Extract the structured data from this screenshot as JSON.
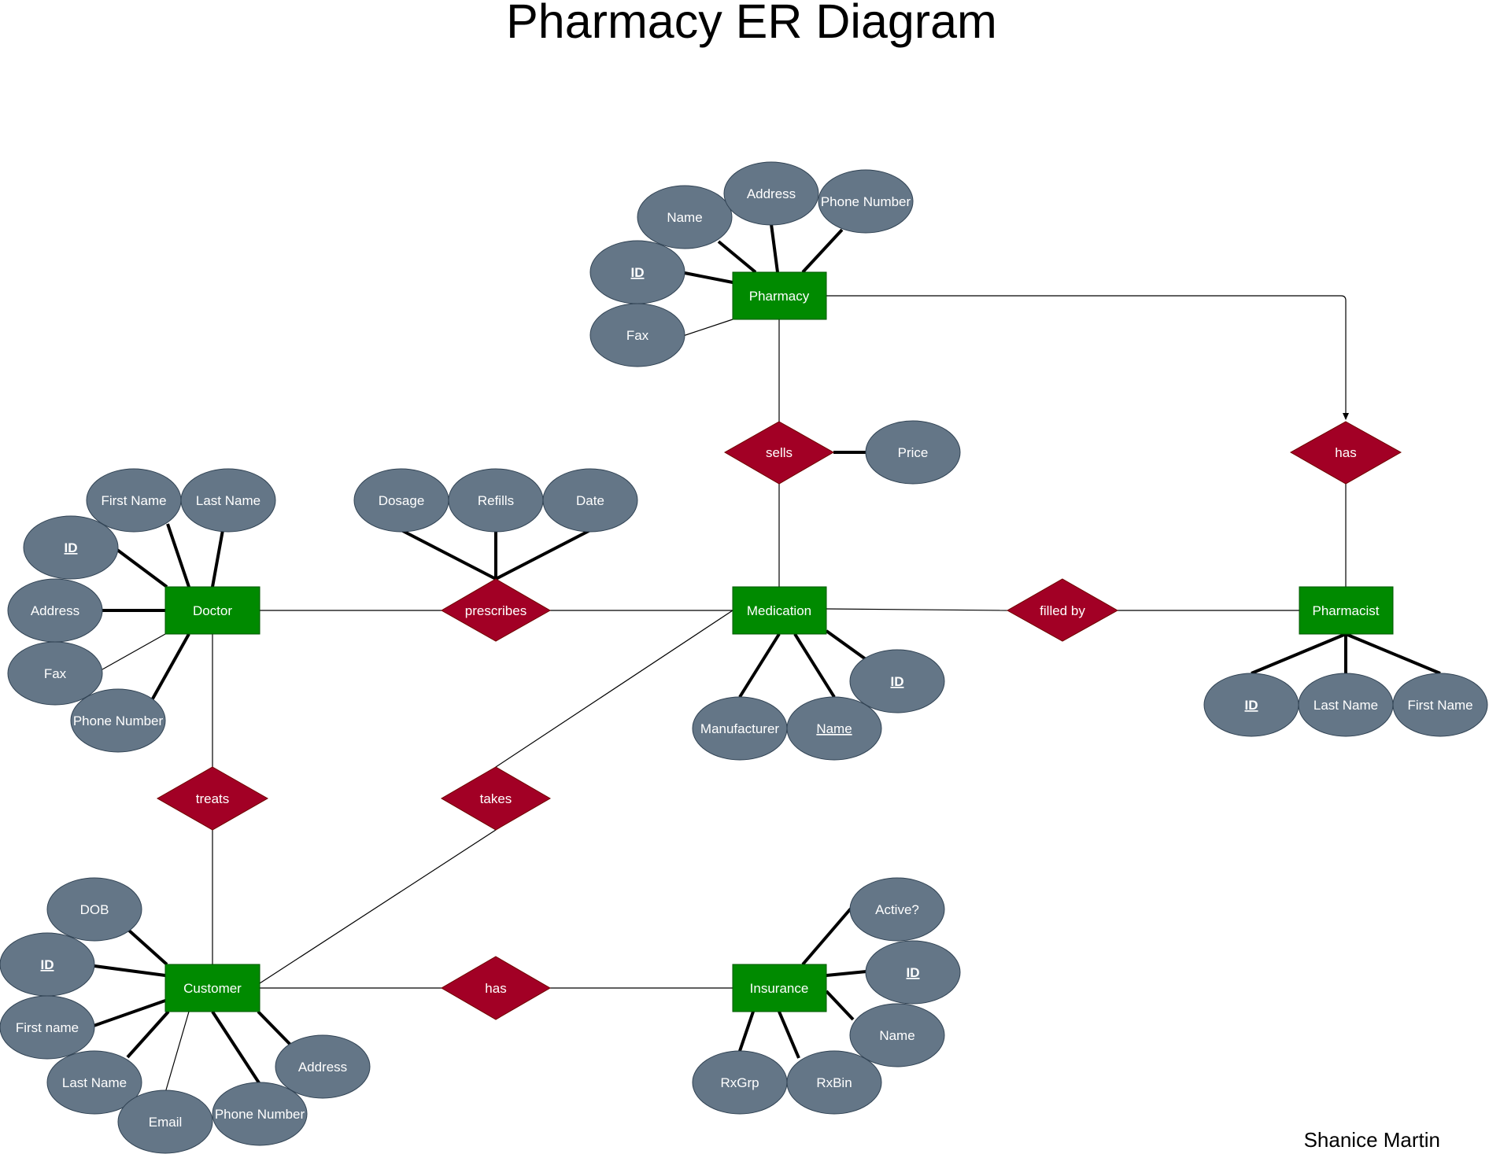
{
  "title": "Pharmacy ER Diagram",
  "author": "Shanice Martin",
  "colors": {
    "entity": "#008a00",
    "relationship": "#a20025",
    "attribute": "#647687",
    "text": "#ffffff",
    "line": "#000000"
  },
  "entities": {
    "pharmacy": "Pharmacy",
    "doctor": "Doctor",
    "medication": "Medication",
    "pharmacist": "Pharmacist",
    "customer": "Customer",
    "insurance": "Insurance"
  },
  "relationships": {
    "sells": "sells",
    "has_pharmacy": "has",
    "prescribes": "prescribes",
    "filled_by": "filled by",
    "treats": "treats",
    "takes": "takes",
    "has_insurance": "has"
  },
  "attributes": {
    "pharmacy": {
      "name": "Name",
      "address": "Address",
      "phone": "Phone Number",
      "id": "ID",
      "fax": "Fax"
    },
    "sells": {
      "price": "Price"
    },
    "doctor": {
      "first_name": "First Name",
      "last_name": "Last Name",
      "id": "ID",
      "address": "Address",
      "fax": "Fax",
      "phone": "Phone Number"
    },
    "prescribes": {
      "dosage": "Dosage",
      "refills": "Refills",
      "date": "Date"
    },
    "medication": {
      "id": "ID",
      "manufacturer": "Manufacturer",
      "name": "Name"
    },
    "pharmacist": {
      "id": "ID",
      "last_name": "Last Name",
      "first_name": "First Name"
    },
    "customer": {
      "dob": "DOB",
      "id": "ID",
      "first_name": "First name",
      "last_name": "Last Name",
      "email": "Email",
      "phone": "Phone Number",
      "address": "Address"
    },
    "insurance": {
      "active": "Active?",
      "id": "ID",
      "name": "Name",
      "rxgrp": "RxGrp",
      "rxbin": "RxBin"
    }
  }
}
